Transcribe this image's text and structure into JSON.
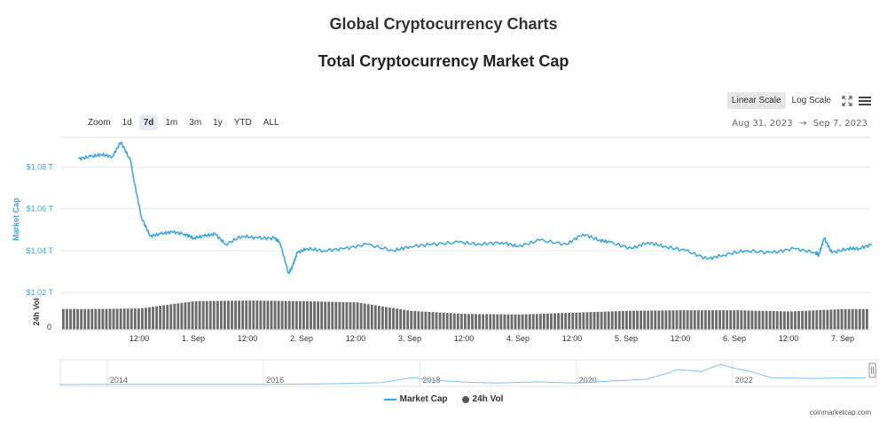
{
  "page": {
    "title": "Global Cryptocurrency Charts",
    "credit": "coinmarketcap.com"
  },
  "toolbar": {
    "zoom_label": "Zoom",
    "zoom_options": [
      "1d",
      "7d",
      "1m",
      "3m",
      "1y",
      "YTD",
      "ALL"
    ],
    "zoom_selected": "7d",
    "linear_scale": "Linear Scale",
    "log_scale": "Log Scale",
    "scale_selected": "Linear Scale",
    "date_from": "Aug 31, 2023",
    "date_arrow": "→",
    "date_to": "Sep 7, 2023",
    "icons": [
      "fullscreen-icon",
      "menu-icon"
    ]
  },
  "colors": {
    "market_cap": "#3aa5dc",
    "volume": "#6b6b6b",
    "grid": "#e6e6e6",
    "navigator": "#7ec3e6"
  },
  "chart_data": {
    "type": "line",
    "title": "Total Cryptocurrency Market Cap",
    "ylabel": "Market Cap",
    "ylabel_secondary": "24h Vol",
    "ylim": [
      1.02,
      1.09
    ],
    "yticks": [
      1.02,
      1.04,
      1.06,
      1.08
    ],
    "ytick_labels": [
      "$1,02 T",
      "$1,04 T",
      "$1,06 T",
      "$1,08 T"
    ],
    "y2_tick_labels": [
      "0"
    ],
    "y_unit": "trillion USD",
    "xlim": [
      0,
      7
    ],
    "x_unit": "days since Aug 31, 2023 00:00",
    "xticks": [
      0.5,
      1,
      1.5,
      2,
      2.5,
      3,
      3.5,
      4,
      4.5,
      5,
      5.5,
      6,
      6.5,
      7
    ],
    "xtick_labels": [
      "12:00",
      "1. Sep",
      "12:00",
      "2. Sep",
      "12:00",
      "3. Sep",
      "12:00",
      "4. Sep",
      "12:00",
      "5. Sep",
      "12:00",
      "6. Sep",
      "12:00",
      "7. Sep"
    ],
    "grid": true,
    "legend_position": "bottom-center",
    "series": [
      {
        "name": "Market Cap",
        "x": [
          -0.06,
          0.05,
          0.15,
          0.25,
          0.33,
          0.42,
          0.45,
          0.52,
          0.6,
          0.7,
          0.8,
          0.92,
          1.0,
          1.1,
          1.2,
          1.3,
          1.45,
          1.6,
          1.75,
          1.8,
          1.88,
          1.92,
          1.96,
          2.05,
          2.2,
          2.4,
          2.6,
          2.85,
          3.0,
          3.2,
          3.45,
          3.65,
          3.85,
          4.0,
          4.2,
          4.45,
          4.6,
          4.75,
          4.85,
          5.05,
          5.2,
          5.35,
          5.55,
          5.75,
          5.9,
          6.1,
          6.35,
          6.55,
          6.75,
          6.78,
          6.83,
          6.9,
          7.05,
          7.15,
          7.27
        ],
        "values": [
          1.084,
          1.085,
          1.086,
          1.085,
          1.092,
          1.083,
          1.074,
          1.056,
          1.047,
          1.048,
          1.049,
          1.048,
          1.046,
          1.047,
          1.048,
          1.043,
          1.047,
          1.046,
          1.046,
          1.044,
          1.029,
          1.033,
          1.039,
          1.041,
          1.04,
          1.041,
          1.043,
          1.04,
          1.042,
          1.043,
          1.044,
          1.043,
          1.044,
          1.042,
          1.045,
          1.043,
          1.048,
          1.045,
          1.044,
          1.041,
          1.044,
          1.042,
          1.04,
          1.036,
          1.038,
          1.04,
          1.039,
          1.041,
          1.039,
          1.038,
          1.046,
          1.039,
          1.041,
          1.041,
          1.043
        ]
      },
      {
        "name": "24h Vol",
        "type": "bar",
        "x": [
          0,
          0.5,
          1,
          1.5,
          2,
          2.5,
          3,
          3.5,
          4,
          4.5,
          5,
          5.5,
          6,
          6.5,
          7
        ],
        "values": [
          0.68,
          0.7,
          0.94,
          0.96,
          0.94,
          0.9,
          0.62,
          0.52,
          0.5,
          0.56,
          0.62,
          0.64,
          0.64,
          0.6,
          0.68
        ],
        "unit": "relative"
      }
    ],
    "navigator": {
      "xtick_labels": [
        "2014",
        "2016",
        "2018",
        "2020",
        "2022"
      ],
      "x": [
        2013.4,
        2014.0,
        2015.0,
        2016.0,
        2016.8,
        2017.5,
        2017.9,
        2018.2,
        2018.6,
        2019.0,
        2019.5,
        2020.0,
        2020.5,
        2020.9,
        2021.2,
        2021.3,
        2021.6,
        2021.85,
        2022.0,
        2022.2,
        2022.5,
        2023.0,
        2023.5,
        2023.7
      ],
      "values": [
        0.0,
        0.02,
        0.01,
        0.02,
        0.05,
        0.12,
        0.45,
        0.28,
        0.15,
        0.1,
        0.18,
        0.1,
        0.25,
        0.35,
        0.8,
        1.0,
        0.85,
        1.35,
        1.1,
        0.9,
        0.45,
        0.4,
        0.45,
        0.42
      ]
    }
  }
}
